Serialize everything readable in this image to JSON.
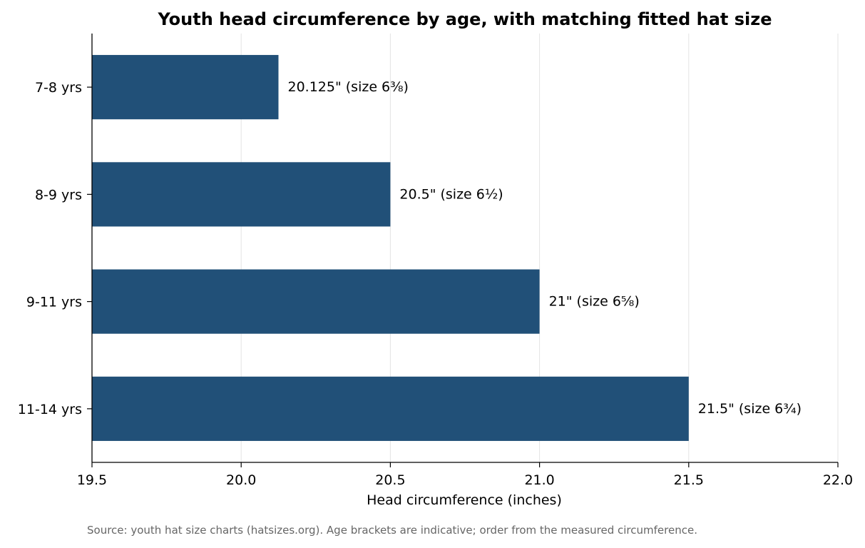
{
  "chart_data": {
    "type": "bar",
    "orientation": "horizontal",
    "title": "Youth head circumference by age, with matching fitted hat size",
    "xlabel": "Head circumference (inches)",
    "ylabel": "",
    "xlim": [
      19.5,
      22.0
    ],
    "xticks": [
      "19.5",
      "20.0",
      "20.5",
      "21.0",
      "21.5",
      "22.0"
    ],
    "grid": "vertical",
    "categories": [
      "7-8 yrs",
      "8-9 yrs",
      "9-11 yrs",
      "11-14 yrs"
    ],
    "values": [
      20.125,
      20.5,
      21.0,
      21.5
    ],
    "data_labels": [
      "20.125\"  (size 6⅜)",
      "20.5\"  (size 6½)",
      "21\"  (size 6⅝)",
      "21.5\"  (size 6¾)"
    ],
    "bar_color": "#215078"
  },
  "source_note": "Source: youth hat size charts (hatsizes.org). Age brackets are indicative; order from the measured circumference."
}
